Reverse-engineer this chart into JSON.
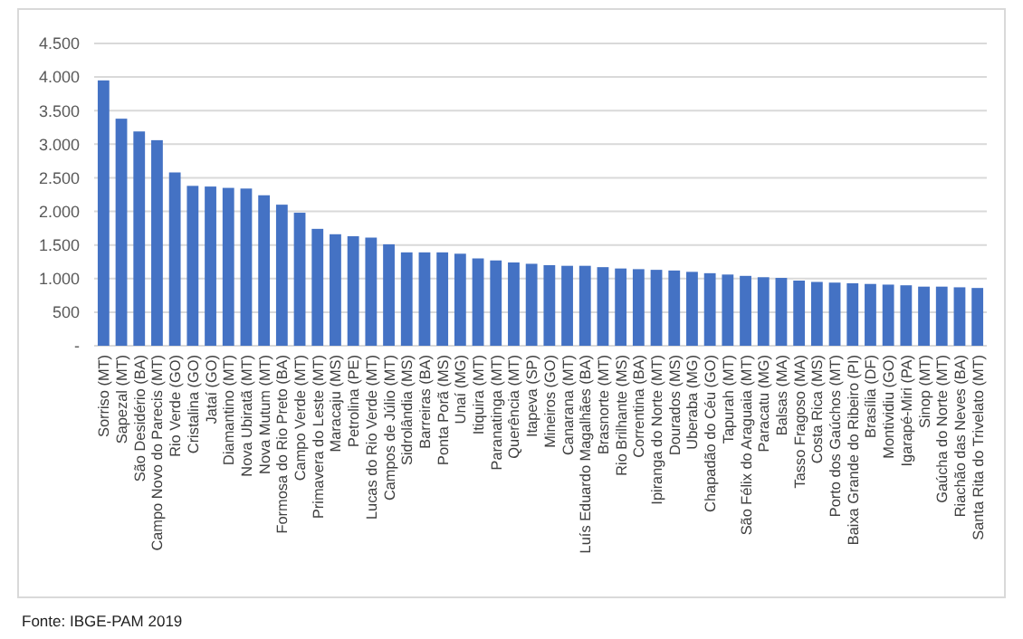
{
  "chart_data": {
    "type": "bar",
    "categories": [
      "Sorriso (MT)",
      "Sapezal (MT)",
      "São Desidério (BA)",
      "Campo Novo do Parecis (MT)",
      "Rio Verde (GO)",
      "Cristalina (GO)",
      "Jataí (GO)",
      "Diamantino (MT)",
      "Nova Ubiratã (MT)",
      "Nova Mutum (MT)",
      "Formosa do Rio Preto (BA)",
      "Campo Verde (MT)",
      "Primavera do Leste (MT)",
      "Maracaju (MS)",
      "Petrolina (PE)",
      "Lucas do Rio Verde (MT)",
      "Campos de Júlio (MT)",
      "Sidrolândia (MS)",
      "Barreiras (BA)",
      "Ponta Porã (MS)",
      "Unaí (MG)",
      "Itiquira (MT)",
      "Paranatinga (MT)",
      "Querência (MT)",
      "Itapeva (SP)",
      "Mineiros (GO)",
      "Canarana (MT)",
      "Luís Eduardo Magalhães (BA)",
      "Brasnorte (MT)",
      "Rio Brilhante (MS)",
      "Correntina (BA)",
      "Ipiranga do Norte (MT)",
      "Dourados (MS)",
      "Uberaba (MG)",
      "Chapadão do Céu (GO)",
      "Tapurah (MT)",
      "São Félix do Araguaia (MT)",
      "Paracatu (MG)",
      "Balsas (MA)",
      "Tasso Fragoso (MA)",
      "Costa Rica (MS)",
      "Porto dos Gaúchos (MT)",
      "Baixa Grande do Ribeiro (PI)",
      "Brasília (DF)",
      "Montividiu (GO)",
      "Igarapé-Miri (PA)",
      "Sinop (MT)",
      "Gaúcha do Norte (MT)",
      "Riachão das Neves (BA)",
      "Santa Rita do Trivelato (MT)"
    ],
    "values": [
      3950,
      3380,
      3190,
      3060,
      2580,
      2380,
      2370,
      2350,
      2340,
      2240,
      2100,
      1980,
      1740,
      1660,
      1630,
      1610,
      1510,
      1390,
      1390,
      1390,
      1370,
      1300,
      1270,
      1240,
      1220,
      1200,
      1190,
      1190,
      1170,
      1150,
      1140,
      1130,
      1120,
      1100,
      1080,
      1060,
      1040,
      1020,
      1010,
      970,
      950,
      940,
      930,
      920,
      910,
      900,
      880,
      880,
      870,
      860
    ],
    "color": "#4472c4",
    "ylim": [
      0,
      4500
    ],
    "yticks": [
      {
        "value": 0,
        "label": "-"
      },
      {
        "value": 500,
        "label": "500"
      },
      {
        "value": 1000,
        "label": "1.000"
      },
      {
        "value": 1500,
        "label": "1.500"
      },
      {
        "value": 2000,
        "label": "2.000"
      },
      {
        "value": 2500,
        "label": "2.500"
      },
      {
        "value": 3000,
        "label": "3.000"
      },
      {
        "value": 3500,
        "label": "3.500"
      },
      {
        "value": 4000,
        "label": "4.000"
      },
      {
        "value": 4500,
        "label": "4.500"
      }
    ],
    "grid": "y",
    "annotations": [
      "Fonte:  IBGE-PAM 2019"
    ]
  }
}
